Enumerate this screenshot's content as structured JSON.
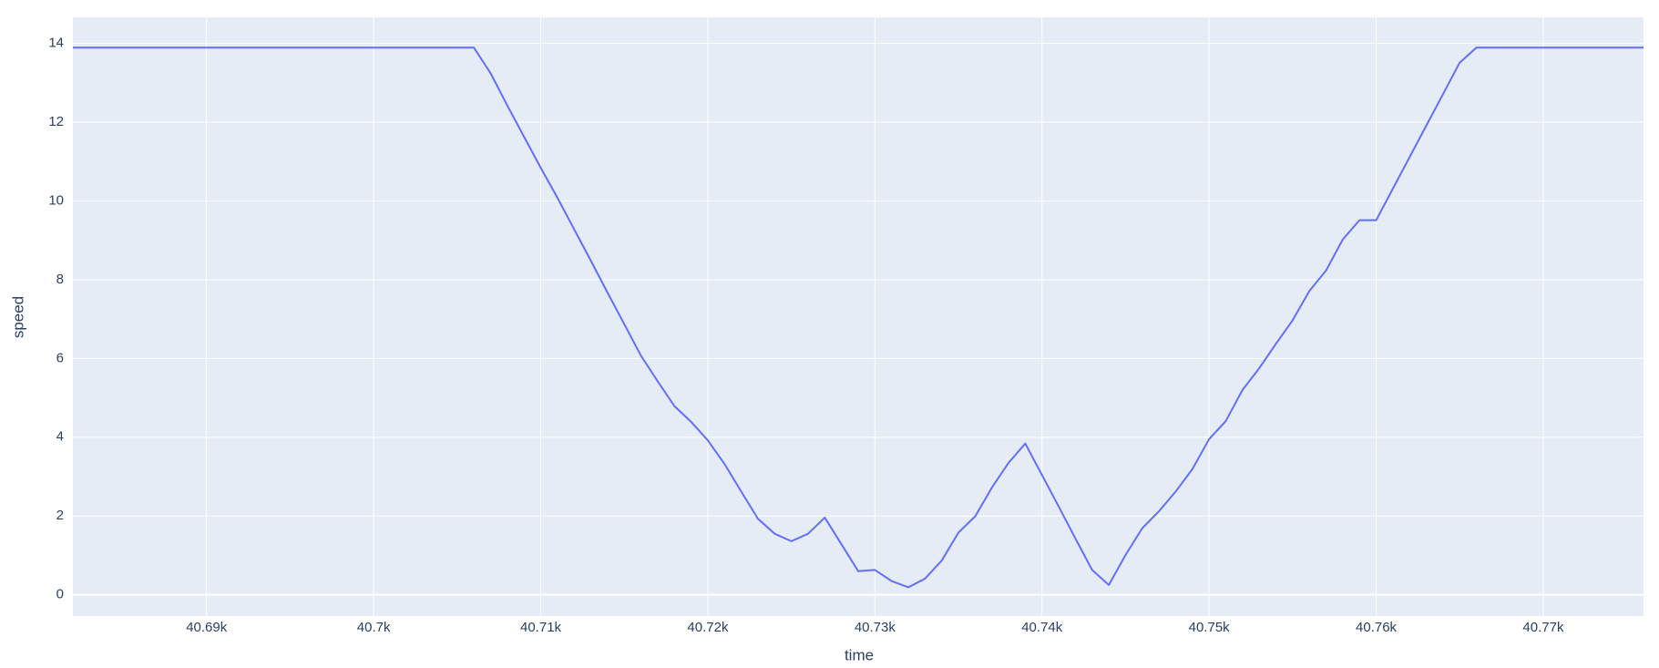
{
  "chart_data": {
    "type": "line",
    "x_label": "time",
    "y_label": "speed",
    "x": [
      40682,
      40706,
      40707,
      40708,
      40709,
      40710,
      40711,
      40712,
      40713,
      40714,
      40715,
      40716,
      40717,
      40718,
      40719,
      40720,
      40721,
      40722,
      40723,
      40724,
      40725,
      40726,
      40727,
      40728,
      40729,
      40730,
      40731,
      40732,
      40733,
      40734,
      40735,
      40736,
      40737,
      40738,
      40739,
      40740,
      40741,
      40742,
      40743,
      40744,
      40745,
      40746,
      40747,
      40748,
      40749,
      40750,
      40751,
      40752,
      40753,
      40754,
      40755,
      40756,
      40757,
      40758,
      40759,
      40760,
      40761,
      40762,
      40763,
      40764,
      40765,
      40766,
      40776
    ],
    "values": [
      13.89,
      13.89,
      13.24,
      12.42,
      11.63,
      10.84,
      10.08,
      9.28,
      8.48,
      7.67,
      6.87,
      6.07,
      5.42,
      4.79,
      4.39,
      3.92,
      3.32,
      2.62,
      1.93,
      1.55,
      1.36,
      1.55,
      1.96,
      1.28,
      0.6,
      0.63,
      0.35,
      0.19,
      0.41,
      0.87,
      1.58,
      1.99,
      2.72,
      3.35,
      3.84,
      3.04,
      2.24,
      1.43,
      0.63,
      0.25,
      1.01,
      1.69,
      2.12,
      2.62,
      3.19,
      3.95,
      4.41,
      5.2,
      5.75,
      6.37,
      6.97,
      7.71,
      8.23,
      9.02,
      9.51,
      9.51,
      10.31,
      11.11,
      11.91,
      12.71,
      13.51,
      13.89,
      13.89
    ],
    "color": "#636efa",
    "xlim": [
      40682,
      40776
    ],
    "ylim": [
      -0.54,
      14.66
    ],
    "xticks": [
      {
        "value": 40690,
        "label": "40.69k"
      },
      {
        "value": 40700,
        "label": "40.7k"
      },
      {
        "value": 40710,
        "label": "40.71k"
      },
      {
        "value": 40720,
        "label": "40.72k"
      },
      {
        "value": 40730,
        "label": "40.73k"
      },
      {
        "value": 40740,
        "label": "40.74k"
      },
      {
        "value": 40750,
        "label": "40.75k"
      },
      {
        "value": 40760,
        "label": "40.76k"
      },
      {
        "value": 40770,
        "label": "40.77k"
      }
    ],
    "yticks": [
      0,
      2,
      4,
      6,
      8,
      10,
      12,
      14
    ],
    "grid": true
  }
}
